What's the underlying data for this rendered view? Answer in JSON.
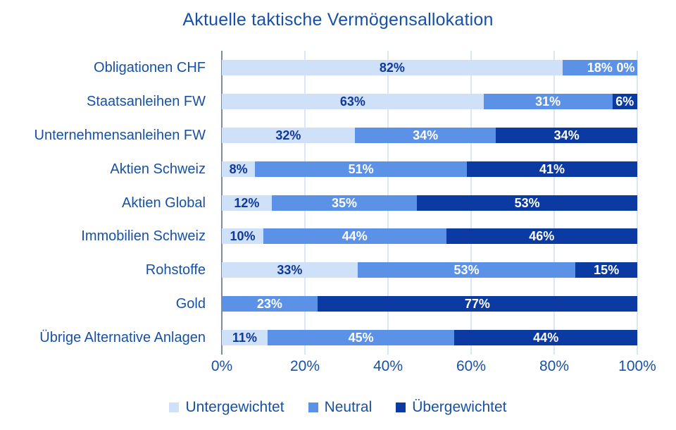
{
  "title": "Aktuelle taktische Vermögensallokation",
  "colors": {
    "title_text": "#1751a6",
    "axis_text": "#1751a6",
    "gridline": "#dbe7f7",
    "axis_line": "#7c8a9b",
    "background": "#ffffff"
  },
  "chart_data": {
    "type": "bar",
    "stacked": true,
    "orientation": "horizontal",
    "title": "Aktuelle taktische Vermögensallokation",
    "categories": [
      "Obligationen CHF",
      "Staatsanleihen FW",
      "Unternehmensanleihen FW",
      "Aktien Schweiz",
      "Aktien Global",
      "Immobilien Schweiz",
      "Rohstoffe",
      "Gold",
      "Übrige Alternative Anlagen"
    ],
    "series": [
      {
        "name": "Untergewichtet",
        "color": "#cfe1f8",
        "label_color": "#10389b",
        "values": [
          82,
          63,
          32,
          8,
          12,
          10,
          33,
          0,
          11
        ]
      },
      {
        "name": "Neutral",
        "color": "#5b92e8",
        "label_color": "#ffffff",
        "values": [
          18,
          31,
          34,
          51,
          35,
          44,
          53,
          23,
          45
        ]
      },
      {
        "name": "Übergewichtet",
        "color": "#0c3aa3",
        "label_color": "#ffffff",
        "values": [
          0,
          6,
          34,
          41,
          53,
          46,
          15,
          77,
          44
        ]
      }
    ],
    "value_suffix": "%",
    "x_ticks": [
      "0%",
      "20%",
      "40%",
      "60%",
      "80%",
      "100%"
    ],
    "xlim": [
      0,
      100
    ],
    "grid": "vertical",
    "legend_position": "bottom"
  }
}
